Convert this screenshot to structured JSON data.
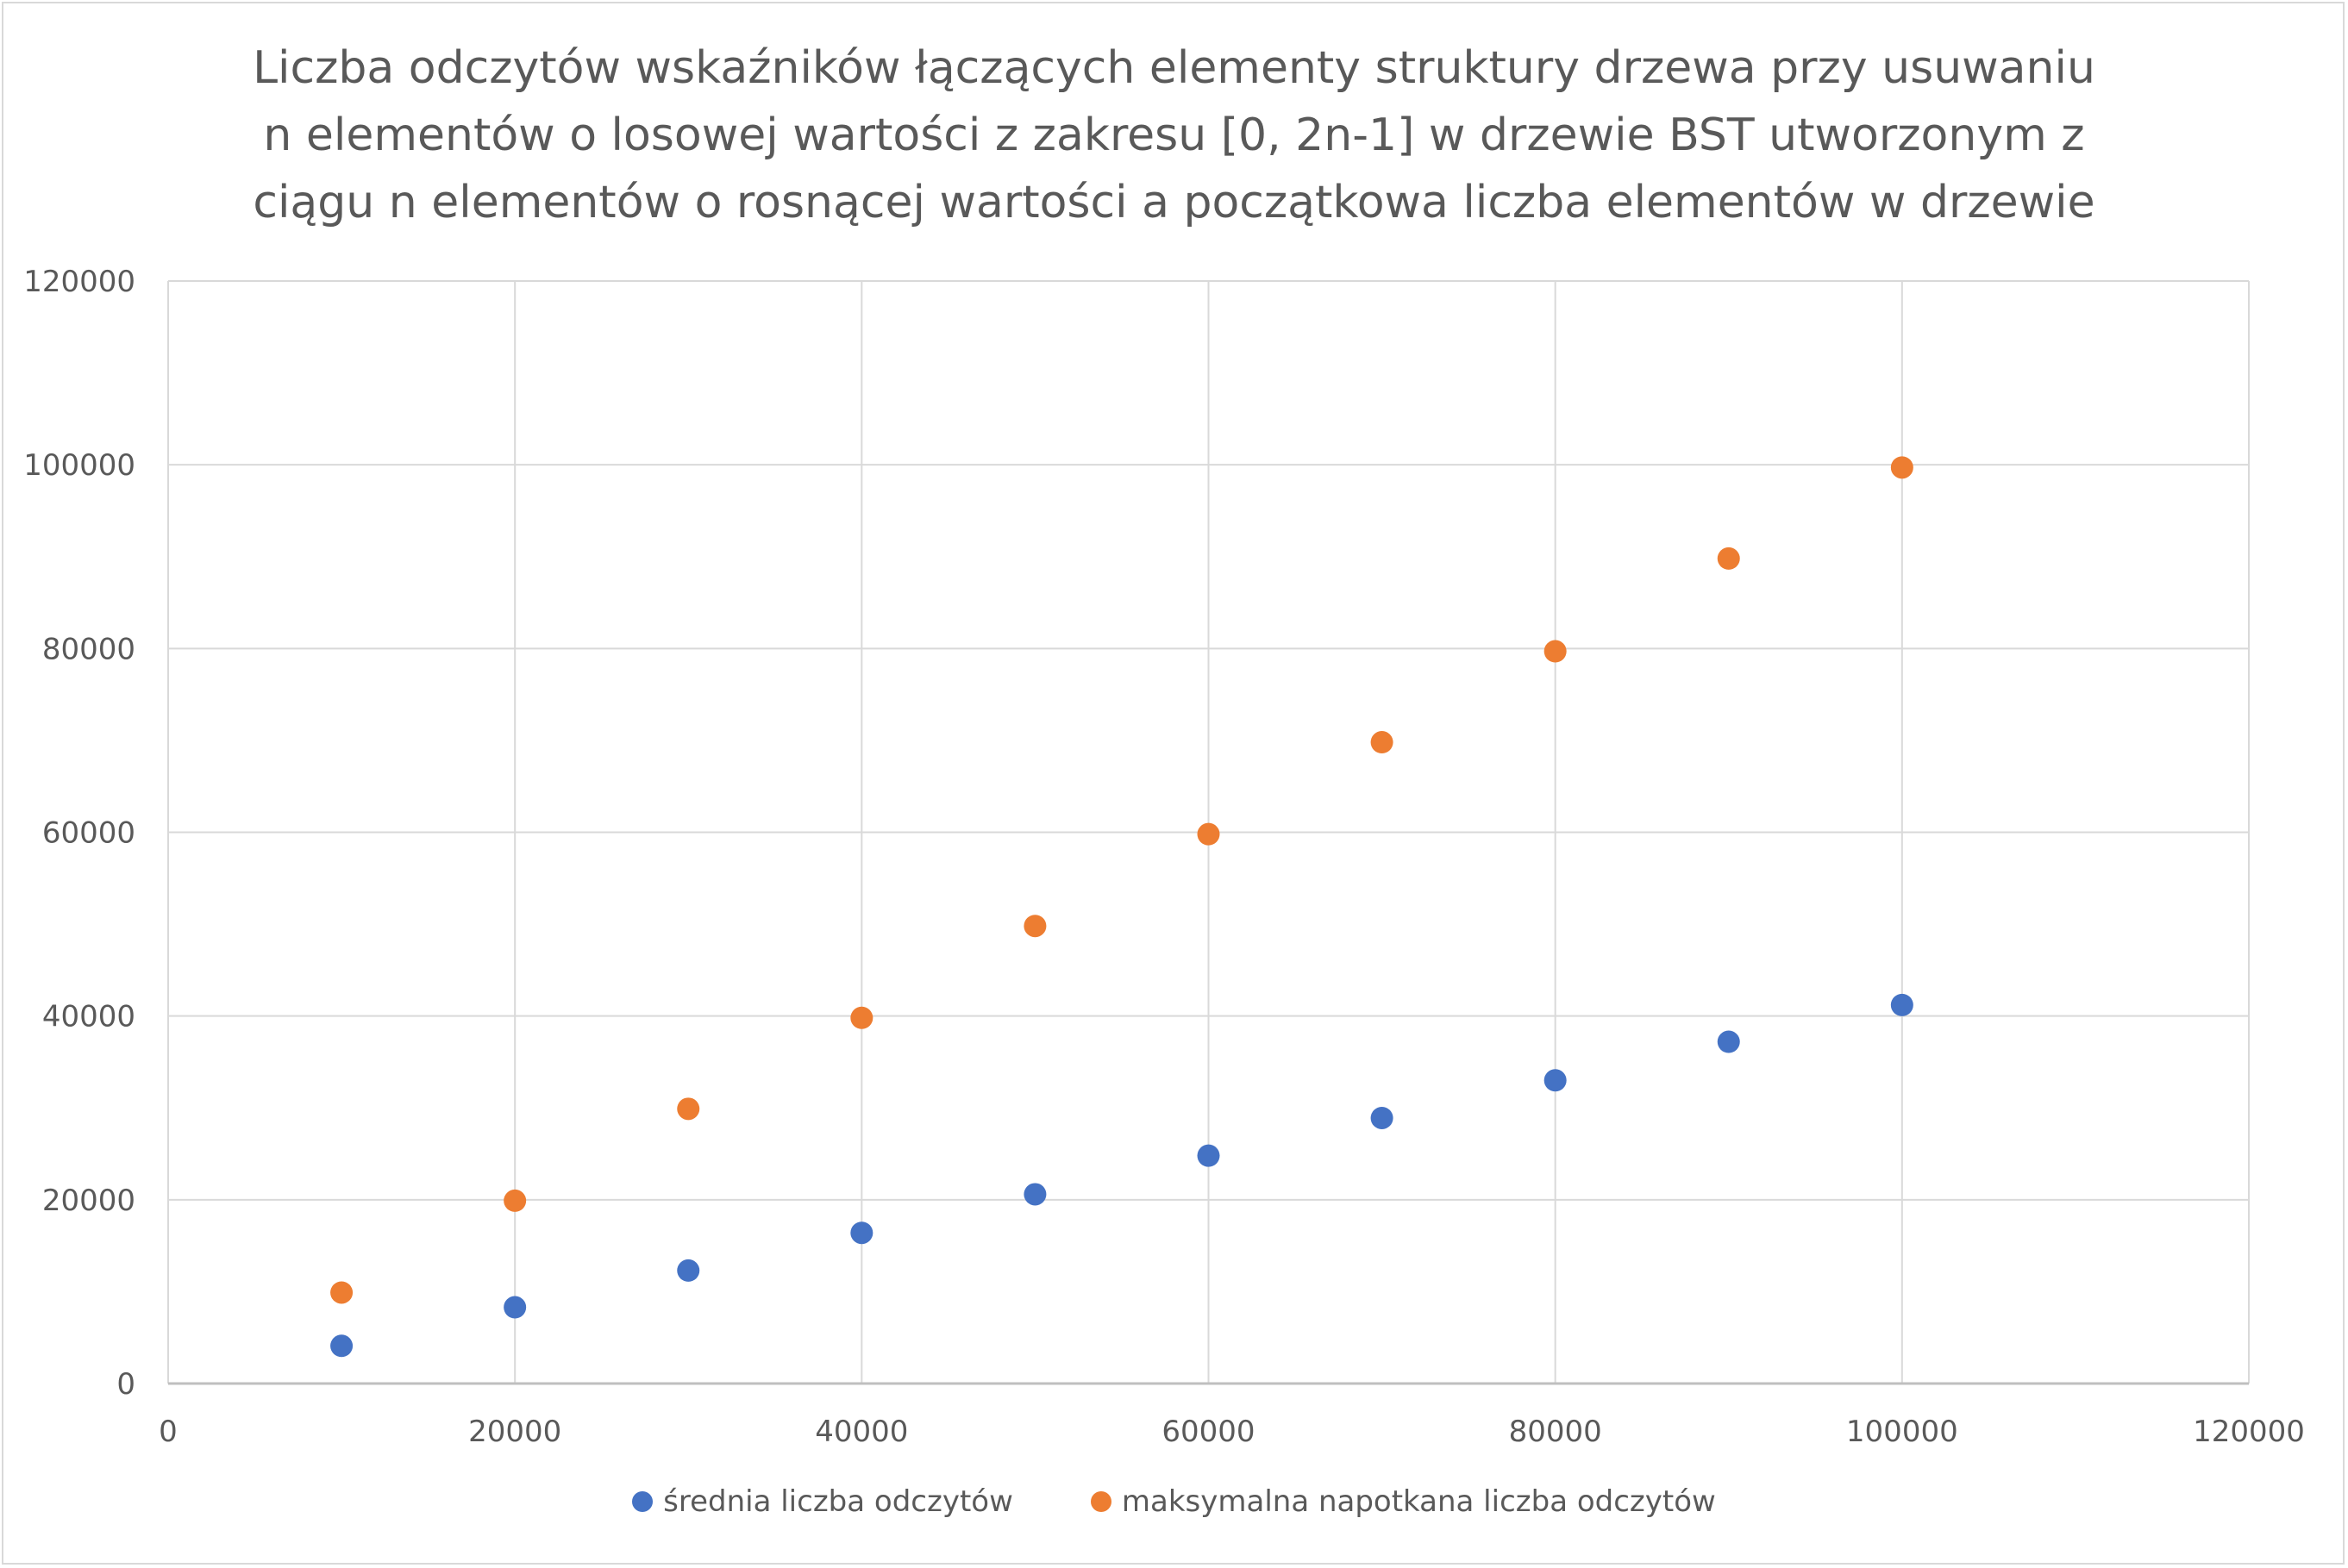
{
  "chart_data": {
    "type": "scatter",
    "title_lines": [
      "Liczba odczytów wskaźników łączących elementy struktury drzewa przy usuwaniu",
      "n elementów o losowej wartości z zakresu [0, 2n-1] w drzewie BST utworzonym z",
      "ciągu n elementów o rosnącej wartości a początkowa liczba elementów w drzewie"
    ],
    "xlim": [
      0,
      120000
    ],
    "ylim": [
      0,
      120000
    ],
    "x_ticks": [
      0,
      20000,
      40000,
      60000,
      80000,
      100000,
      120000
    ],
    "y_ticks": [
      0,
      20000,
      40000,
      60000,
      80000,
      100000,
      120000
    ],
    "grid": true,
    "legend_position": "bottom",
    "x": [
      10000,
      20000,
      30000,
      40000,
      50000,
      60000,
      70000,
      80000,
      90000,
      100000
    ],
    "series": [
      {
        "name": "średnia liczba odczytów",
        "color": "#4472c4",
        "values": [
          4100,
          8300,
          12300,
          16400,
          20600,
          24800,
          28900,
          33000,
          37200,
          41200
        ]
      },
      {
        "name": "maksymalna napotkana liczba odczytów",
        "color": "#ed7d31",
        "values": [
          9900,
          19900,
          29900,
          39800,
          49800,
          59800,
          69800,
          79700,
          89800,
          99700
        ]
      }
    ]
  }
}
